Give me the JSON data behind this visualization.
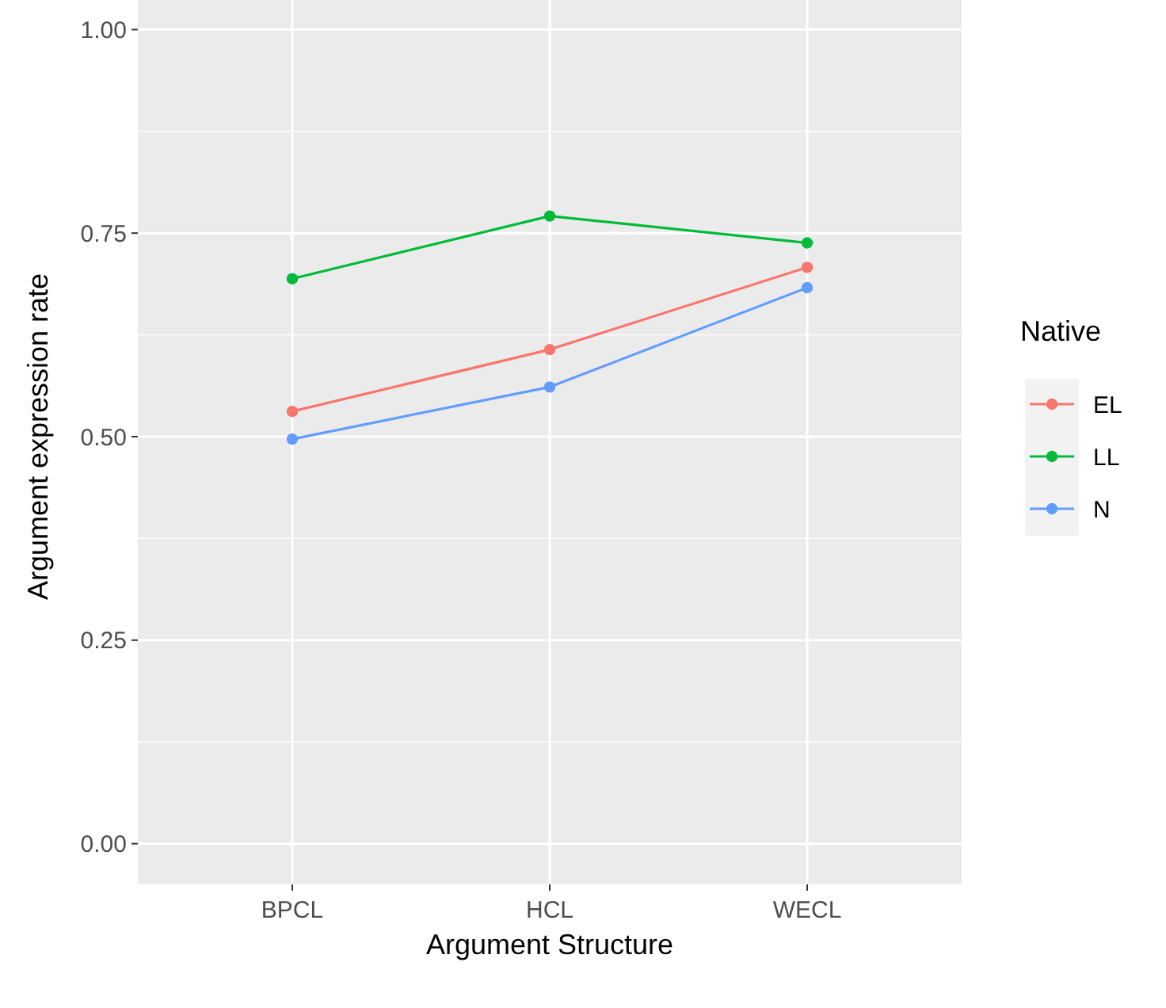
{
  "chart_data": {
    "type": "line",
    "xlabel": "Argument Structure",
    "ylabel": "Argument expression rate",
    "legend_title": "Native",
    "legend": "right",
    "marker": "circle",
    "grid": true,
    "categories": [
      "BPCL",
      "HCL",
      "WECL"
    ],
    "ylim": [
      -0.05,
      1.05
    ],
    "yticks": [
      {
        "value": 0,
        "label": "0.00"
      },
      {
        "value": 0.25,
        "label": "0.25"
      },
      {
        "value": 0.5,
        "label": "0.50"
      },
      {
        "value": 0.75,
        "label": "0.75"
      },
      {
        "value": 1,
        "label": "1.00"
      }
    ],
    "series": [
      {
        "name": "EL",
        "color": "#f8766d",
        "values": [
          0.531,
          0.607,
          0.708
        ]
      },
      {
        "name": "LL",
        "color": "#00ba38",
        "values": [
          0.694,
          0.771,
          0.738
        ]
      },
      {
        "name": "N",
        "color": "#619cff",
        "values": [
          0.497,
          0.561,
          0.683
        ]
      }
    ]
  }
}
